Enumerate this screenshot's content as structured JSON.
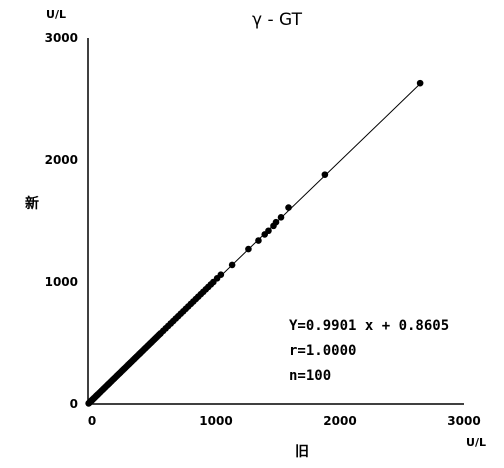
{
  "chart_data": {
    "type": "scatter",
    "title": "γ - GT",
    "xlabel": "旧",
    "ylabel": "新",
    "x_unit": "U/L",
    "y_unit": "U/L",
    "xlim": [
      0,
      3000
    ],
    "ylim": [
      0,
      3000
    ],
    "x_ticks": [
      "0",
      "1000",
      "2000",
      "3000"
    ],
    "y_ticks": [
      "0",
      "1000",
      "2000",
      "3000"
    ],
    "grid": false,
    "regression": {
      "slope": 0.9901,
      "intercept": 0.8605,
      "x_range": [
        0,
        2650
      ]
    },
    "stats": {
      "equation": "Y=0.9901 x + 0.8605",
      "r": "r=1.0000",
      "n": "n=100"
    },
    "series": [
      {
        "x": [
          5,
          10,
          15,
          20,
          25,
          30,
          35,
          40,
          45,
          50,
          55,
          60,
          65,
          70,
          75,
          80,
          90,
          100,
          110,
          120,
          130,
          140,
          150,
          160,
          170,
          180,
          190,
          200,
          210,
          220,
          230,
          240,
          250,
          260,
          270,
          280,
          290,
          300,
          310,
          320,
          330,
          340,
          350,
          360,
          370,
          380,
          390,
          400,
          410,
          420,
          430,
          440,
          450,
          460,
          470,
          480,
          490,
          500,
          510,
          520,
          530,
          540,
          550,
          560,
          570,
          580,
          600,
          620,
          640,
          660,
          680,
          700,
          720,
          740,
          760,
          780,
          800,
          820,
          840,
          860,
          880,
          900,
          920,
          940,
          960,
          980,
          1000,
          1030,
          1060,
          1150,
          1280,
          1360,
          1410,
          1440,
          1480,
          1500,
          1540,
          1600,
          1890,
          2650
        ],
        "y": [
          5,
          10,
          15,
          20,
          25,
          30,
          35,
          40,
          45,
          50,
          55,
          60,
          65,
          70,
          75,
          80,
          90,
          100,
          110,
          120,
          130,
          140,
          150,
          160,
          170,
          180,
          190,
          200,
          210,
          220,
          230,
          240,
          250,
          260,
          270,
          280,
          290,
          300,
          310,
          320,
          330,
          340,
          350,
          360,
          370,
          380,
          390,
          400,
          410,
          420,
          430,
          440,
          450,
          460,
          470,
          480,
          490,
          500,
          510,
          520,
          530,
          540,
          550,
          560,
          570,
          580,
          600,
          620,
          640,
          660,
          680,
          700,
          720,
          740,
          760,
          780,
          800,
          820,
          840,
          860,
          880,
          900,
          920,
          940,
          960,
          980,
          1000,
          1030,
          1060,
          1140,
          1270,
          1340,
          1390,
          1420,
          1460,
          1490,
          1530,
          1610,
          1880,
          2630
        ]
      }
    ]
  }
}
